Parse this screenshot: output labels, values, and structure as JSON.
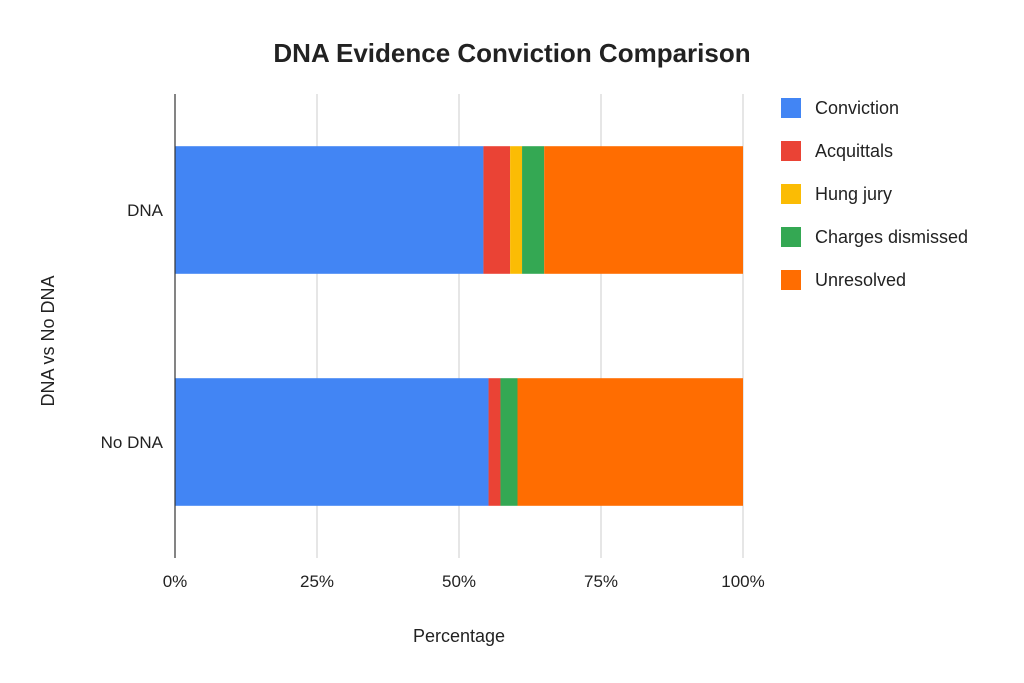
{
  "chart_data": {
    "type": "bar",
    "orientation": "horizontal",
    "stacked": "percent",
    "title": "DNA Evidence Conviction Comparison",
    "xlabel": "Percentage",
    "ylabel": "DNA vs No DNA",
    "categories": [
      "DNA",
      "No DNA"
    ],
    "x_ticks": [
      "0%",
      "25%",
      "50%",
      "75%",
      "100%"
    ],
    "xlim": [
      0,
      100
    ],
    "grid": true,
    "legend_position": "right",
    "series": [
      {
        "name": "Conviction",
        "color": "#4285F4",
        "values": [
          54.3,
          55.2
        ]
      },
      {
        "name": "Acquittals",
        "color": "#EA4335",
        "values": [
          4.7,
          2.1
        ]
      },
      {
        "name": "Hung jury",
        "color": "#FBBC04",
        "values": [
          2.1,
          0
        ]
      },
      {
        "name": "Charges dismissed",
        "color": "#34A853",
        "values": [
          3.9,
          3.0
        ]
      },
      {
        "name": "Unresolved",
        "color": "#FF6D01",
        "values": [
          35.0,
          39.7
        ]
      }
    ]
  }
}
